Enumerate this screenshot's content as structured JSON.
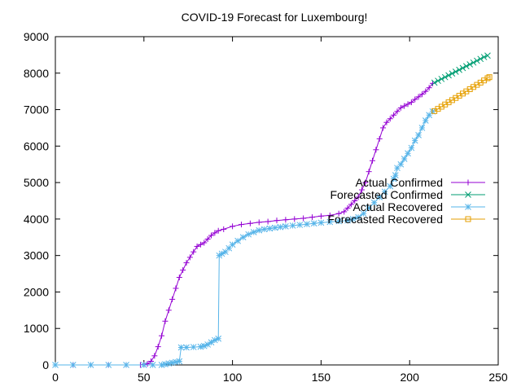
{
  "chart_data": {
    "type": "line",
    "title": "COVID-19 Forecast for Luxembourg!",
    "xlabel": "",
    "ylabel": "",
    "xlim": [
      0,
      250
    ],
    "ylim": [
      0,
      9000
    ],
    "xticks": [
      0,
      50,
      100,
      150,
      200,
      250
    ],
    "yticks": [
      0,
      1000,
      2000,
      3000,
      4000,
      5000,
      6000,
      7000,
      8000,
      9000
    ],
    "grid": false,
    "legend_position": "right",
    "series": [
      {
        "name": "Actual Confirmed",
        "color": "#9400d3",
        "marker": "plus",
        "points": [
          [
            0,
            0
          ],
          [
            10,
            0
          ],
          [
            20,
            0
          ],
          [
            30,
            0
          ],
          [
            40,
            0
          ],
          [
            48,
            0
          ],
          [
            50,
            10
          ],
          [
            52,
            30
          ],
          [
            54,
            100
          ],
          [
            56,
            250
          ],
          [
            58,
            500
          ],
          [
            60,
            800
          ],
          [
            62,
            1200
          ],
          [
            64,
            1500
          ],
          [
            66,
            1800
          ],
          [
            68,
            2100
          ],
          [
            70,
            2400
          ],
          [
            72,
            2600
          ],
          [
            74,
            2800
          ],
          [
            76,
            2950
          ],
          [
            78,
            3100
          ],
          [
            80,
            3250
          ],
          [
            82,
            3300
          ],
          [
            84,
            3350
          ],
          [
            86,
            3450
          ],
          [
            88,
            3550
          ],
          [
            90,
            3620
          ],
          [
            92,
            3680
          ],
          [
            95,
            3720
          ],
          [
            100,
            3800
          ],
          [
            105,
            3850
          ],
          [
            110,
            3880
          ],
          [
            115,
            3910
          ],
          [
            120,
            3930
          ],
          [
            125,
            3960
          ],
          [
            130,
            3980
          ],
          [
            135,
            4000
          ],
          [
            140,
            4020
          ],
          [
            145,
            4050
          ],
          [
            150,
            4080
          ],
          [
            155,
            4100
          ],
          [
            160,
            4150
          ],
          [
            163,
            4200
          ],
          [
            165,
            4300
          ],
          [
            167,
            4400
          ],
          [
            169,
            4500
          ],
          [
            171,
            4600
          ],
          [
            173,
            4800
          ],
          [
            175,
            5000
          ],
          [
            177,
            5300
          ],
          [
            179,
            5600
          ],
          [
            181,
            5900
          ],
          [
            183,
            6200
          ],
          [
            185,
            6500
          ],
          [
            187,
            6650
          ],
          [
            189,
            6750
          ],
          [
            191,
            6850
          ],
          [
            193,
            6950
          ],
          [
            195,
            7050
          ],
          [
            197,
            7100
          ],
          [
            199,
            7150
          ],
          [
            201,
            7200
          ],
          [
            203,
            7280
          ],
          [
            205,
            7350
          ],
          [
            207,
            7420
          ],
          [
            209,
            7500
          ],
          [
            211,
            7600
          ],
          [
            213,
            7720
          ]
        ]
      },
      {
        "name": "Forecasted Confirmed",
        "color": "#009e73",
        "marker": "x",
        "points": [
          [
            214,
            7740
          ],
          [
            216,
            7790
          ],
          [
            218,
            7840
          ],
          [
            220,
            7890
          ],
          [
            222,
            7940
          ],
          [
            224,
            7990
          ],
          [
            226,
            8040
          ],
          [
            228,
            8090
          ],
          [
            230,
            8140
          ],
          [
            232,
            8190
          ],
          [
            234,
            8240
          ],
          [
            236,
            8290
          ],
          [
            238,
            8340
          ],
          [
            240,
            8390
          ],
          [
            242,
            8440
          ],
          [
            244,
            8480
          ]
        ]
      },
      {
        "name": "Actual Recovered",
        "color": "#56b4e9",
        "marker": "star",
        "points": [
          [
            0,
            0
          ],
          [
            10,
            0
          ],
          [
            20,
            0
          ],
          [
            30,
            0
          ],
          [
            40,
            0
          ],
          [
            50,
            0
          ],
          [
            55,
            0
          ],
          [
            60,
            0
          ],
          [
            62,
            20
          ],
          [
            64,
            40
          ],
          [
            66,
            60
          ],
          [
            68,
            80
          ],
          [
            70,
            100
          ],
          [
            71,
            480
          ],
          [
            74,
            480
          ],
          [
            78,
            490
          ],
          [
            82,
            500
          ],
          [
            84,
            520
          ],
          [
            86,
            560
          ],
          [
            88,
            620
          ],
          [
            90,
            680
          ],
          [
            92,
            720
          ],
          [
            92.5,
            3000
          ],
          [
            94,
            3050
          ],
          [
            96,
            3100
          ],
          [
            98,
            3200
          ],
          [
            100,
            3300
          ],
          [
            103,
            3400
          ],
          [
            106,
            3500
          ],
          [
            109,
            3580
          ],
          [
            112,
            3640
          ],
          [
            115,
            3690
          ],
          [
            118,
            3720
          ],
          [
            121,
            3740
          ],
          [
            124,
            3760
          ],
          [
            127,
            3780
          ],
          [
            130,
            3800
          ],
          [
            134,
            3820
          ],
          [
            138,
            3840
          ],
          [
            142,
            3860
          ],
          [
            146,
            3880
          ],
          [
            150,
            3900
          ],
          [
            155,
            3920
          ],
          [
            160,
            3940
          ],
          [
            165,
            3960
          ],
          [
            168,
            4000
          ],
          [
            171,
            4050
          ],
          [
            174,
            4150
          ],
          [
            177,
            4300
          ],
          [
            180,
            4450
          ],
          [
            183,
            4600
          ],
          [
            186,
            4750
          ],
          [
            189,
            4900
          ],
          [
            191,
            5100
          ],
          [
            192,
            5200
          ],
          [
            193,
            5400
          ],
          [
            195,
            5500
          ],
          [
            197,
            5650
          ],
          [
            199,
            5800
          ],
          [
            201,
            5950
          ],
          [
            203,
            6150
          ],
          [
            205,
            6300
          ],
          [
            207,
            6500
          ],
          [
            209,
            6700
          ],
          [
            211,
            6850
          ],
          [
            213,
            6950
          ]
        ]
      },
      {
        "name": "Forecasted Recovered",
        "color": "#e69f00",
        "marker": "square",
        "points": [
          [
            214,
            6960
          ],
          [
            216,
            7020
          ],
          [
            218,
            7080
          ],
          [
            220,
            7140
          ],
          [
            222,
            7200
          ],
          [
            224,
            7260
          ],
          [
            226,
            7320
          ],
          [
            228,
            7380
          ],
          [
            230,
            7440
          ],
          [
            232,
            7500
          ],
          [
            234,
            7560
          ],
          [
            236,
            7620
          ],
          [
            238,
            7680
          ],
          [
            240,
            7740
          ],
          [
            242,
            7800
          ],
          [
            244,
            7860
          ],
          [
            245,
            7890
          ]
        ]
      }
    ]
  }
}
